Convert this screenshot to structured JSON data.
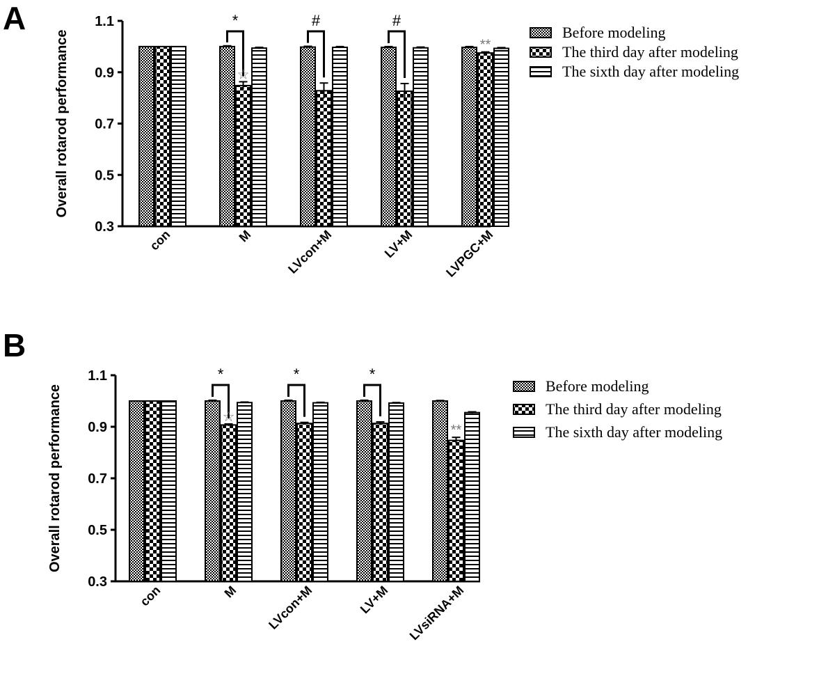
{
  "chart_data": [
    {
      "panel": "A",
      "type": "bar",
      "ylabel": "Overall rotarod performance",
      "ylim": [
        0.3,
        1.1
      ],
      "yticks": [
        "0.3",
        "0.5",
        "0.7",
        "0.9",
        "1.1"
      ],
      "categories": [
        "con",
        "M",
        "LVcon+M",
        "LV+M",
        "LVPGC+M"
      ],
      "series": [
        {
          "name": "Before modeling",
          "pattern": "fine-check",
          "values": [
            1.0,
            1.0,
            0.998,
            0.997,
            0.997
          ],
          "errors": [
            0,
            0.003,
            0.003,
            0.003,
            0.003
          ]
        },
        {
          "name": "The third day after modeling",
          "pattern": "big-check",
          "values": [
            1.0,
            0.848,
            0.828,
            0.826,
            0.975
          ],
          "errors": [
            0,
            0.015,
            0.03,
            0.03,
            0.004
          ]
        },
        {
          "name": "The sixth day after modeling",
          "pattern": "hstripe",
          "values": [
            1.0,
            0.994,
            0.997,
            0.995,
            0.993
          ],
          "errors": [
            0,
            0.003,
            0.003,
            0.003,
            0.003
          ]
        }
      ],
      "brackets": [
        {
          "category": 1,
          "label": "*"
        },
        {
          "category": 2,
          "label": "#"
        },
        {
          "category": 3,
          "label": "#"
        }
      ],
      "annotations": [
        {
          "category": 1,
          "series": 1,
          "label": "☆"
        },
        {
          "category": 4,
          "series": 1,
          "label": "**"
        }
      ]
    },
    {
      "panel": "B",
      "type": "bar",
      "ylabel": "Overall rotarod performance",
      "ylim": [
        0.3,
        1.1
      ],
      "yticks": [
        "0.3",
        "0.5",
        "0.7",
        "0.9",
        "1.1"
      ],
      "categories": [
        "con",
        "M",
        "LVcon+M",
        "LV+M",
        "LVsiRNA+M"
      ],
      "series": [
        {
          "name": "Before modeling",
          "pattern": "fine-check",
          "values": [
            1.0,
            1.0,
            1.0,
            1.0,
            1.0
          ],
          "errors": [
            0,
            0.003,
            0.003,
            0.003,
            0.002
          ]
        },
        {
          "name": "The third day after modeling",
          "pattern": "big-check",
          "values": [
            1.0,
            0.907,
            0.913,
            0.913,
            0.847
          ],
          "errors": [
            0,
            0.004,
            0.004,
            0.006,
            0.012
          ]
        },
        {
          "name": "The sixth day after modeling",
          "pattern": "hstripe",
          "values": [
            1.0,
            0.994,
            0.993,
            0.992,
            0.955
          ],
          "errors": [
            0,
            0.002,
            0.002,
            0.002,
            0.003
          ]
        }
      ],
      "brackets": [
        {
          "category": 1,
          "label": "*"
        },
        {
          "category": 2,
          "label": "*"
        },
        {
          "category": 3,
          "label": "*"
        }
      ],
      "annotations": [
        {
          "category": 1,
          "series": 1,
          "label": "☆"
        },
        {
          "category": 4,
          "series": 1,
          "label": "**"
        }
      ]
    }
  ]
}
